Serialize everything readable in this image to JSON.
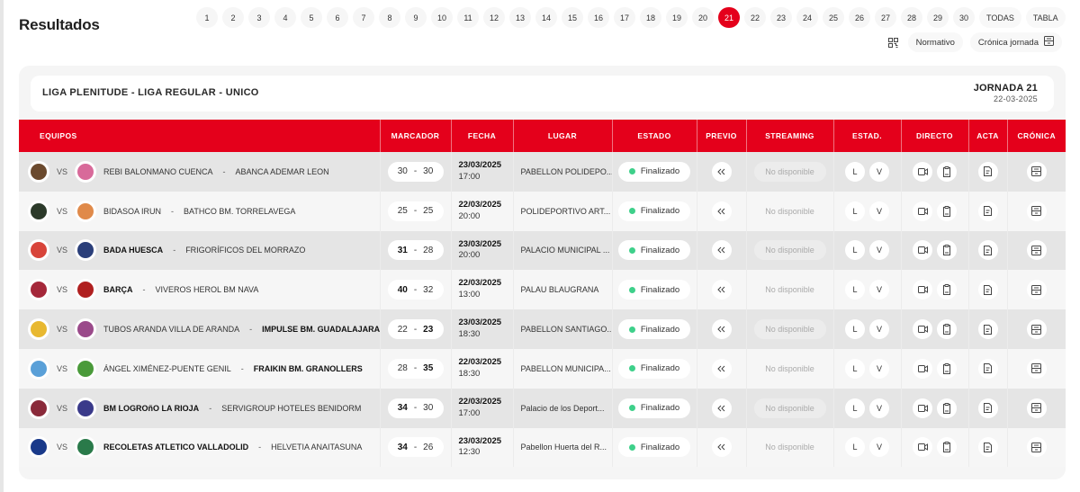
{
  "page": {
    "title": "Resultados"
  },
  "rounds": {
    "items": [
      "1",
      "2",
      "3",
      "4",
      "5",
      "6",
      "7",
      "8",
      "9",
      "10",
      "11",
      "12",
      "13",
      "14",
      "15",
      "16",
      "17",
      "18",
      "19",
      "20",
      "21",
      "22",
      "23",
      "24",
      "25",
      "26",
      "27",
      "28",
      "29",
      "30"
    ],
    "active": "21",
    "extra": [
      "TODAS",
      "TABLA"
    ]
  },
  "actions": {
    "qr_icon": "qr-code-icon",
    "normativo": "Normativo",
    "cronica_jornada": "Crónica jornada",
    "cronica_icon": "archive-icon"
  },
  "league": {
    "name": "LIGA PLENITUDE - LIGA REGULAR - UNICO",
    "jornada": "JORNADA 21",
    "date": "22-03-2025"
  },
  "colors": {
    "accent": "#e4001b",
    "status_ok": "#3ed08a"
  },
  "table": {
    "headers": [
      "EQUIPOS",
      "MARCADOR",
      "FECHA",
      "LUGAR",
      "ESTADO",
      "PREVIO",
      "STREAMING",
      "ESTAD.",
      "DIRECTO",
      "ACTA",
      "CRÓNICA"
    ],
    "vs_label": "VS",
    "streaming_label": "No disponible",
    "stats_local": "L",
    "stats_visitor": "V",
    "rows": [
      {
        "home": "REBI BALONMANO CUENCA",
        "away": "ABANCA ADEMAR LEON",
        "home_score": "30",
        "away_score": "30",
        "winner": "none",
        "date": "23/03/2025",
        "time": "17:00",
        "venue": "PABELLON POLIDEPO...",
        "status": "Finalizado",
        "home_color": "#6b4a2e",
        "away_color": "#d86a9a"
      },
      {
        "home": "BIDASOA IRUN",
        "away": "BATHCO BM. TORRELAVEGA",
        "home_score": "25",
        "away_score": "25",
        "winner": "none",
        "date": "22/03/2025",
        "time": "20:00",
        "venue": "POLIDEPORTIVO ART...",
        "status": "Finalizado",
        "home_color": "#2c3a2a",
        "away_color": "#e08a4a"
      },
      {
        "home": "BADA HUESCA",
        "away": "FRIGORÍFICOS DEL MORRAZO",
        "home_score": "31",
        "away_score": "28",
        "winner": "home",
        "date": "23/03/2025",
        "time": "20:00",
        "venue": "PALACIO MUNICIPAL ...",
        "status": "Finalizado",
        "home_color": "#d8443a",
        "away_color": "#2b3f7a"
      },
      {
        "home": "BARÇA",
        "away": "VIVEROS HEROL BM NAVA",
        "home_score": "40",
        "away_score": "32",
        "winner": "home",
        "date": "22/03/2025",
        "time": "13:00",
        "venue": "PALAU BLAUGRANA",
        "status": "Finalizado",
        "home_color": "#a5283a",
        "away_color": "#b02020"
      },
      {
        "home": "TUBOS ARANDA VILLA DE ARANDA",
        "away": "IMPULSE BM. GUADALAJARA",
        "home_score": "22",
        "away_score": "23",
        "winner": "away",
        "date": "23/03/2025",
        "time": "18:30",
        "venue": "PABELLON SANTIAGO...",
        "status": "Finalizado",
        "home_color": "#e8b830",
        "away_color": "#9a4a8a"
      },
      {
        "home": "ÁNGEL XIMÉNEZ-PUENTE GENIL",
        "away": "FRAIKIN BM. GRANOLLERS",
        "home_score": "28",
        "away_score": "35",
        "winner": "away",
        "date": "22/03/2025",
        "time": "18:30",
        "venue": "PABELLON MUNICIPA...",
        "status": "Finalizado",
        "home_color": "#5aa0d8",
        "away_color": "#4a9a3a"
      },
      {
        "home": "BM LOGROñO LA RIOJA",
        "away": "SERVIGROUP HOTELES BENIDORM",
        "home_score": "34",
        "away_score": "30",
        "winner": "home",
        "date": "22/03/2025",
        "time": "17:00",
        "venue": "Palacio de los Deport...",
        "status": "Finalizado",
        "home_color": "#8a2a3a",
        "away_color": "#3a3a8a"
      },
      {
        "home": "RECOLETAS ATLETICO VALLADOLID",
        "away": "HELVETIA ANAITASUNA",
        "home_score": "34",
        "away_score": "26",
        "winner": "home",
        "date": "23/03/2025",
        "time": "12:30",
        "venue": "Pabellon Huerta del R...",
        "status": "Finalizado",
        "home_color": "#1a3a8a",
        "away_color": "#2a7a4a"
      }
    ]
  }
}
